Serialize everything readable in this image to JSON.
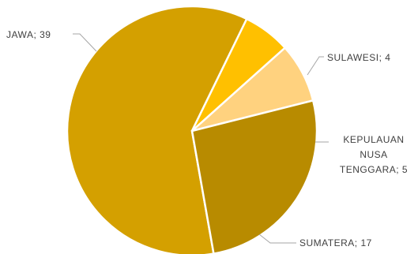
{
  "chart_data": {
    "type": "pie",
    "title": "",
    "slices": [
      {
        "label": "JAWA",
        "value": 39,
        "color": "#D4A000"
      },
      {
        "label": "SULAWESI",
        "value": 4,
        "color": "#FFC000"
      },
      {
        "label": "KEPULAUAN NUSA TENGGARA",
        "value": 5,
        "color": "#FFD27F"
      },
      {
        "label": "SUMATERA",
        "value": 17,
        "color": "#B88B00"
      }
    ],
    "data_labels": [
      {
        "lines": [
          "JAWA; 39"
        ]
      },
      {
        "lines": [
          "SULAWESI; 4"
        ]
      },
      {
        "lines": [
          "KEPULAUAN",
          "NUSA",
          "TENGGARA; 5"
        ]
      },
      {
        "lines": [
          "SUMATERA; 17"
        ]
      }
    ],
    "legend": "none"
  }
}
